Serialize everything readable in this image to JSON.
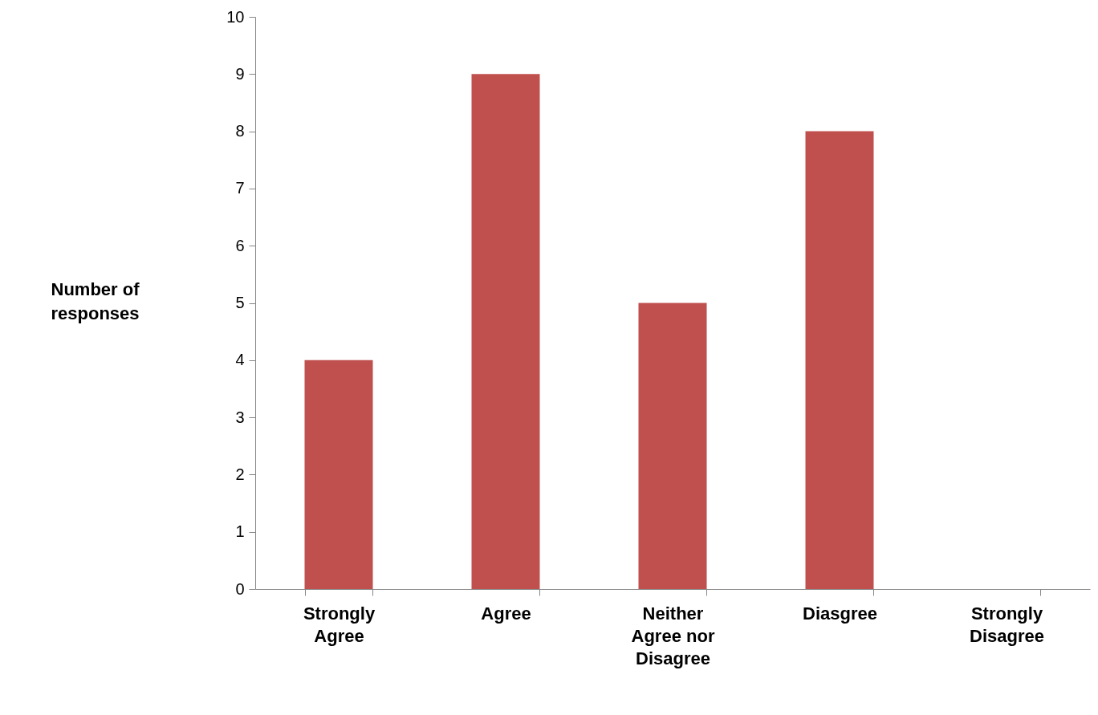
{
  "chart_data": {
    "type": "bar",
    "ylabel": "Number of responses",
    "categories": [
      "Strongly Agree",
      "Agree",
      "Neither Agree nor Disagree",
      "Diasgree",
      "Strongly Disagree"
    ],
    "values": [
      4,
      9,
      5,
      8,
      0
    ],
    "color": "#c0504d",
    "ylim": [
      0,
      10
    ],
    "yticks": [
      0,
      1,
      2,
      3,
      4,
      5,
      6,
      7,
      8,
      9,
      10
    ],
    "grid": false
  }
}
